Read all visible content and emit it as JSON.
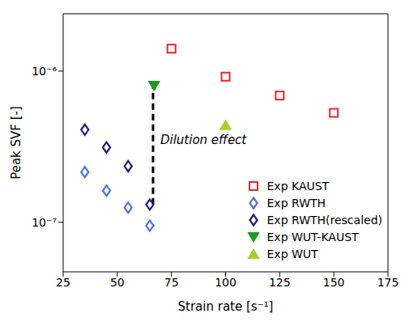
{
  "chart_data": {
    "type": "scatter",
    "x_label": "Strain rate [s⁻¹]",
    "y_label": "Peak SVF [-]",
    "log": "y",
    "grid": false,
    "legend": "lower right",
    "xlim": [
      25,
      175
    ],
    "xticks": [
      25,
      50,
      75,
      100,
      125,
      150,
      175
    ],
    "ylim": [
      4.7e-08,
      2.4e-06
    ],
    "yticks": [
      {
        "value": 1e-07,
        "label": "10⁻⁷"
      },
      {
        "value": 1e-06,
        "label": "10⁻⁶"
      }
    ],
    "series": [
      {
        "name": "Exp KAUST",
        "color": "#e8282b",
        "marker": "square",
        "x": [
          75,
          100,
          125,
          150
        ],
        "values": [
          1.41e-06,
          9.2e-07,
          6.9e-07,
          5.3e-07
        ]
      },
      {
        "name": "Exp RWTH",
        "color": "#4a72e8",
        "marker": "diamond",
        "x": [
          35,
          45,
          55,
          65
        ],
        "values": [
          2.15e-07,
          1.62e-07,
          1.25e-07,
          9.5e-08
        ]
      },
      {
        "name": "Exp RWTH(rescaled)",
        "color": "#1c1c78",
        "marker": "diamond",
        "x": [
          35,
          45,
          55,
          65
        ],
        "values": [
          4.1e-07,
          3.13e-07,
          2.35e-07,
          1.31e-07
        ]
      },
      {
        "name": "Exp WUT-KAUST",
        "color": "#1f9a1f",
        "marker": "triangle-down",
        "x": [
          67
        ],
        "values": [
          8e-07
        ]
      },
      {
        "name": "Exp WUT",
        "color": "#a6d12a",
        "marker": "triangle-up",
        "x": [
          100
        ],
        "values": [
          4.4e-07
        ]
      }
    ],
    "annotations": [
      {
        "text": "Dilution effect",
        "x": 66.5,
        "y_from": 1.31e-07,
        "y_to": 8e-07
      }
    ]
  }
}
